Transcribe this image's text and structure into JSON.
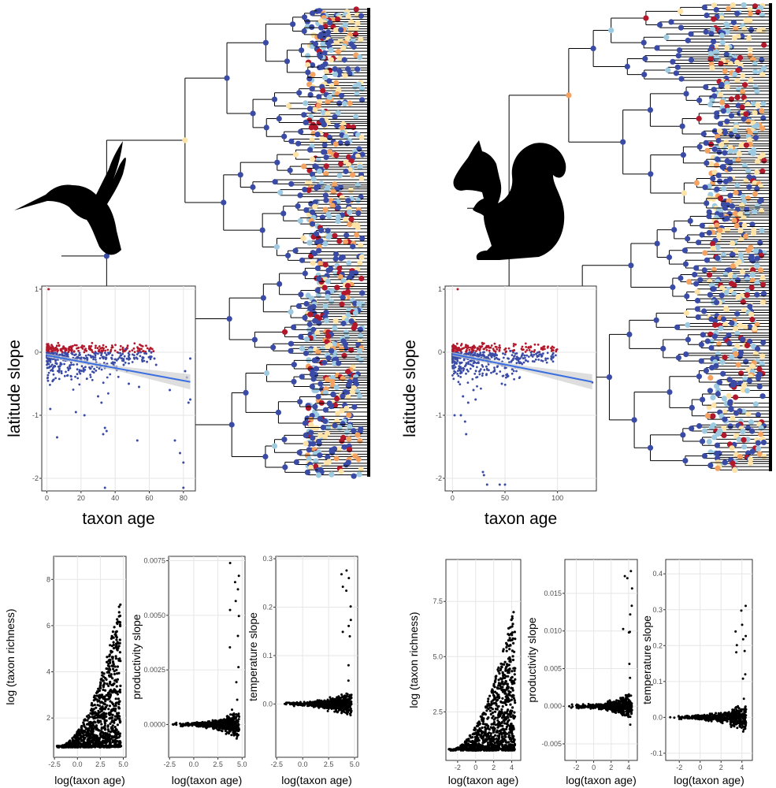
{
  "colors": {
    "node_blue": "#3a4ba6",
    "node_red": "#b2182b",
    "node_light": "#9ecae1",
    "node_cream": "#fde3a7",
    "node_orange": "#f4a261",
    "fit_line": "#3b6fe0",
    "ci_band": "#d0d0d0",
    "scatter_black": "#000000"
  },
  "icons": {
    "left_animal": "hummingbird-silhouette-icon",
    "right_animal": "squirrel-silhouette-icon"
  },
  "chart_data": [
    {
      "id": "bird-latitude",
      "type": "scatter",
      "xlabel": "taxon age",
      "ylabel": "latitude slope",
      "xlim": [
        -3,
        87
      ],
      "ylim": [
        -2.2,
        1.05
      ],
      "xticks": [
        "0",
        "20",
        "40",
        "60",
        "80"
      ],
      "xtick_values": [
        0,
        20,
        40,
        60,
        80
      ],
      "yticks": [
        "1",
        "0",
        "-1",
        "-2"
      ],
      "ytick_values": [
        1,
        0,
        -1,
        -2
      ],
      "fit": {
        "x0": 0,
        "y0": -0.05,
        "x1": 84,
        "y1": -0.47
      },
      "outliers": [
        [
          1,
          1.0
        ],
        [
          2,
          -0.9
        ],
        [
          6,
          -1.35
        ],
        [
          17,
          -0.95
        ],
        [
          22,
          -1.0
        ],
        [
          30,
          -0.7
        ],
        [
          32,
          -0.8
        ],
        [
          34,
          -1.2
        ],
        [
          35,
          -1.25
        ],
        [
          33,
          -1.3
        ],
        [
          34,
          -2.15
        ],
        [
          45,
          -0.2
        ],
        [
          47,
          -0.3
        ],
        [
          48,
          -0.5
        ],
        [
          54,
          -0.55
        ],
        [
          53,
          -1.4
        ],
        [
          63,
          -0.1
        ],
        [
          64,
          -0.2
        ],
        [
          72,
          -0.6
        ],
        [
          78,
          -1.6
        ],
        [
          80,
          -1.75
        ],
        [
          75,
          -1.4
        ],
        [
          80,
          -2.15
        ],
        [
          83,
          -0.8
        ],
        [
          84,
          -0.75
        ],
        [
          82,
          -0.4
        ],
        [
          81,
          -0.3
        ],
        [
          84,
          -0.1
        ],
        [
          46,
          0.05
        ],
        [
          55,
          0.0
        ],
        [
          60,
          0.02
        ]
      ]
    },
    {
      "id": "mammal-latitude",
      "type": "scatter",
      "xlabel": "taxon age",
      "ylabel": "latitude slope",
      "xlim": [
        -7,
        137
      ],
      "ylim": [
        -2.2,
        1.05
      ],
      "xticks": [
        "0",
        "50",
        "100"
      ],
      "xtick_values": [
        0,
        50,
        100
      ],
      "yticks": [
        "1",
        "0",
        "-1",
        "-2"
      ],
      "ytick_values": [
        1,
        0,
        -1,
        -2
      ],
      "fit": {
        "x0": 0,
        "y0": -0.03,
        "x1": 133,
        "y1": -0.47
      },
      "outliers": [
        [
          5,
          1.0
        ],
        [
          2,
          -1.0
        ],
        [
          8,
          -1.0
        ],
        [
          10,
          -0.7
        ],
        [
          12,
          -1.1
        ],
        [
          15,
          -0.8
        ],
        [
          13,
          -1.3
        ],
        [
          20,
          -0.6
        ],
        [
          22,
          -0.75
        ],
        [
          29,
          -1.9
        ],
        [
          30,
          -1.95
        ],
        [
          33,
          -2.1
        ],
        [
          45,
          -2.1
        ],
        [
          50,
          -2.1
        ],
        [
          40,
          -0.3
        ],
        [
          50,
          -0.25
        ],
        [
          52,
          -0.35
        ],
        [
          47,
          -0.5
        ],
        [
          62,
          -0.1
        ],
        [
          75,
          -0.05
        ],
        [
          133,
          -0.48
        ],
        [
          55,
          0.02
        ],
        [
          30,
          0.0
        ],
        [
          38,
          -0.05
        ]
      ]
    },
    {
      "id": "bird-richness",
      "type": "scatter",
      "xlabel": "log(taxon age)",
      "ylabel": "log (taxon richness)",
      "xlim": [
        -2.6,
        5.3
      ],
      "ylim": [
        0.3,
        9.0
      ],
      "xticks": [
        "-2.5",
        "0.0",
        "2.5",
        "5.0"
      ],
      "xtick_values": [
        -2.5,
        0,
        2.5,
        5.0
      ],
      "yticks": [
        "2",
        "4",
        "6",
        "8"
      ],
      "ytick_values": [
        2,
        4,
        6,
        8
      ],
      "pattern": "richness"
    },
    {
      "id": "bird-productivity",
      "type": "scatter",
      "xlabel": "log(taxon age)",
      "ylabel": "productivity slope",
      "xlim": [
        -2.6,
        5.3
      ],
      "ylim": [
        -0.0015,
        0.0077
      ],
      "xticks": [
        "-2.5",
        "0.0",
        "2.5",
        "5.0"
      ],
      "xtick_values": [
        -2.5,
        0,
        2.5,
        5.0
      ],
      "yticks": [
        "0.0000",
        "0.0025",
        "0.0050",
        "0.0075"
      ],
      "ytick_values": [
        0,
        0.0025,
        0.005,
        0.0075
      ],
      "pattern": "slope"
    },
    {
      "id": "bird-temperature",
      "type": "scatter",
      "xlabel": "log(taxon age)",
      "ylabel": "temperature slope",
      "xlim": [
        -2.6,
        5.3
      ],
      "ylim": [
        -0.11,
        0.305
      ],
      "xticks": [
        "-2.5",
        "0.0",
        "2.5",
        "5.0"
      ],
      "xtick_values": [
        -2.5,
        0,
        2.5,
        5.0
      ],
      "yticks": [
        "0.0",
        "0.1",
        "0.2",
        "0.3"
      ],
      "ytick_values": [
        0,
        0.1,
        0.2,
        0.3
      ],
      "pattern": "temperature"
    },
    {
      "id": "mammal-richness",
      "type": "scatter",
      "xlabel": "log(taxon age)",
      "ylabel": "log (taxon richness)",
      "xlim": [
        -3.3,
        5.0
      ],
      "ylim": [
        0.3,
        9.4
      ],
      "xticks": [
        "-2",
        "0",
        "2",
        "4"
      ],
      "xtick_values": [
        -2,
        0,
        2,
        4
      ],
      "yticks": [
        "2.5",
        "5.0",
        "7.5"
      ],
      "ytick_values": [
        2.5,
        5.0,
        7.5
      ],
      "pattern": "richness"
    },
    {
      "id": "mammal-productivity",
      "type": "scatter",
      "xlabel": "log(taxon age)",
      "ylabel": "productivity slope",
      "xlim": [
        -3.3,
        5.0
      ],
      "ylim": [
        -0.0072,
        0.0195
      ],
      "xticks": [
        "-2",
        "0",
        "2",
        "4"
      ],
      "xtick_values": [
        -2,
        0,
        2,
        4
      ],
      "yticks": [
        "-0.005",
        "0.000",
        "0.005",
        "0.010",
        "0.015"
      ],
      "ytick_values": [
        -0.005,
        0,
        0.005,
        0.01,
        0.015
      ],
      "pattern": "slope"
    },
    {
      "id": "mammal-temperature",
      "type": "scatter",
      "xlabel": "log(taxon age)",
      "ylabel": "temperature slope",
      "xlim": [
        -3.3,
        5.0
      ],
      "ylim": [
        -0.12,
        0.44
      ],
      "xticks": [
        "-2",
        "0",
        "2",
        "4"
      ],
      "xtick_values": [
        -2,
        0,
        2,
        4
      ],
      "yticks": [
        "-0.1",
        "0.0",
        "0.1",
        "0.2",
        "0.3",
        "0.4"
      ],
      "ytick_values": [
        -0.1,
        0,
        0.1,
        0.2,
        0.3,
        0.4
      ],
      "pattern": "temperature"
    }
  ]
}
